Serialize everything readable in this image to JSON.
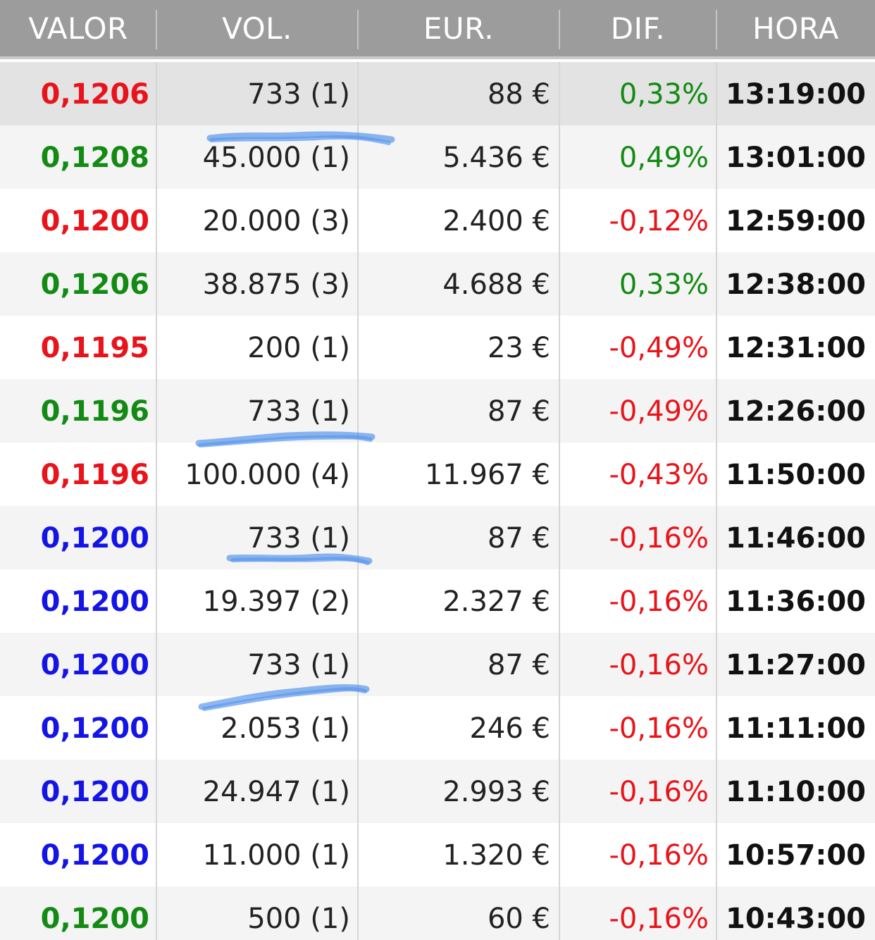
{
  "header": {
    "valor": "VALOR",
    "vol": "VOL.",
    "eur": "EUR.",
    "dif": "DIF.",
    "hora": "HORA"
  },
  "colors": {
    "header_bg": "#9c9c9c",
    "up": "#138a13",
    "down": "#e8141b",
    "neutral": "#1414e6",
    "scribble": "#2f7de8"
  },
  "rows": [
    {
      "valor": "0,1206",
      "valor_color": "red",
      "vol": "733 (1)",
      "eur": "88 €",
      "dif": "0,33%",
      "dif_color": "green",
      "hora": "13:19:00"
    },
    {
      "valor": "0,1208",
      "valor_color": "green",
      "vol": "45.000 (1)",
      "eur": "5.436 €",
      "dif": "0,49%",
      "dif_color": "green",
      "hora": "13:01:00"
    },
    {
      "valor": "0,1200",
      "valor_color": "red",
      "vol": "20.000 (3)",
      "eur": "2.400 €",
      "dif": "-0,12%",
      "dif_color": "red",
      "hora": "12:59:00"
    },
    {
      "valor": "0,1206",
      "valor_color": "green",
      "vol": "38.875 (3)",
      "eur": "4.688 €",
      "dif": "0,33%",
      "dif_color": "green",
      "hora": "12:38:00"
    },
    {
      "valor": "0,1195",
      "valor_color": "red",
      "vol": "200 (1)",
      "eur": "23 €",
      "dif": "-0,49%",
      "dif_color": "red",
      "hora": "12:31:00"
    },
    {
      "valor": "0,1196",
      "valor_color": "green",
      "vol": "733 (1)",
      "eur": "87 €",
      "dif": "-0,49%",
      "dif_color": "red",
      "hora": "12:26:00"
    },
    {
      "valor": "0,1196",
      "valor_color": "red",
      "vol": "100.000 (4)",
      "eur": "11.967 €",
      "dif": "-0,43%",
      "dif_color": "red",
      "hora": "11:50:00"
    },
    {
      "valor": "0,1200",
      "valor_color": "blue",
      "vol": "733 (1)",
      "eur": "87 €",
      "dif": "-0,16%",
      "dif_color": "red",
      "hora": "11:46:00"
    },
    {
      "valor": "0,1200",
      "valor_color": "blue",
      "vol": "19.397 (2)",
      "eur": "2.327 €",
      "dif": "-0,16%",
      "dif_color": "red",
      "hora": "11:36:00"
    },
    {
      "valor": "0,1200",
      "valor_color": "blue",
      "vol": "733 (1)",
      "eur": "87 €",
      "dif": "-0,16%",
      "dif_color": "red",
      "hora": "11:27:00"
    },
    {
      "valor": "0,1200",
      "valor_color": "blue",
      "vol": "2.053 (1)",
      "eur": "246 €",
      "dif": "-0,16%",
      "dif_color": "red",
      "hora": "11:11:00"
    },
    {
      "valor": "0,1200",
      "valor_color": "blue",
      "vol": "24.947 (1)",
      "eur": "2.993 €",
      "dif": "-0,16%",
      "dif_color": "red",
      "hora": "11:10:00"
    },
    {
      "valor": "0,1200",
      "valor_color": "blue",
      "vol": "11.000 (1)",
      "eur": "1.320 €",
      "dif": "-0,16%",
      "dif_color": "red",
      "hora": "10:57:00"
    },
    {
      "valor": "0,1200",
      "valor_color": "green",
      "vol": "500 (1)",
      "eur": "60 €",
      "dif": "-0,16%",
      "dif_color": "red",
      "hora": "10:43:00"
    }
  ]
}
